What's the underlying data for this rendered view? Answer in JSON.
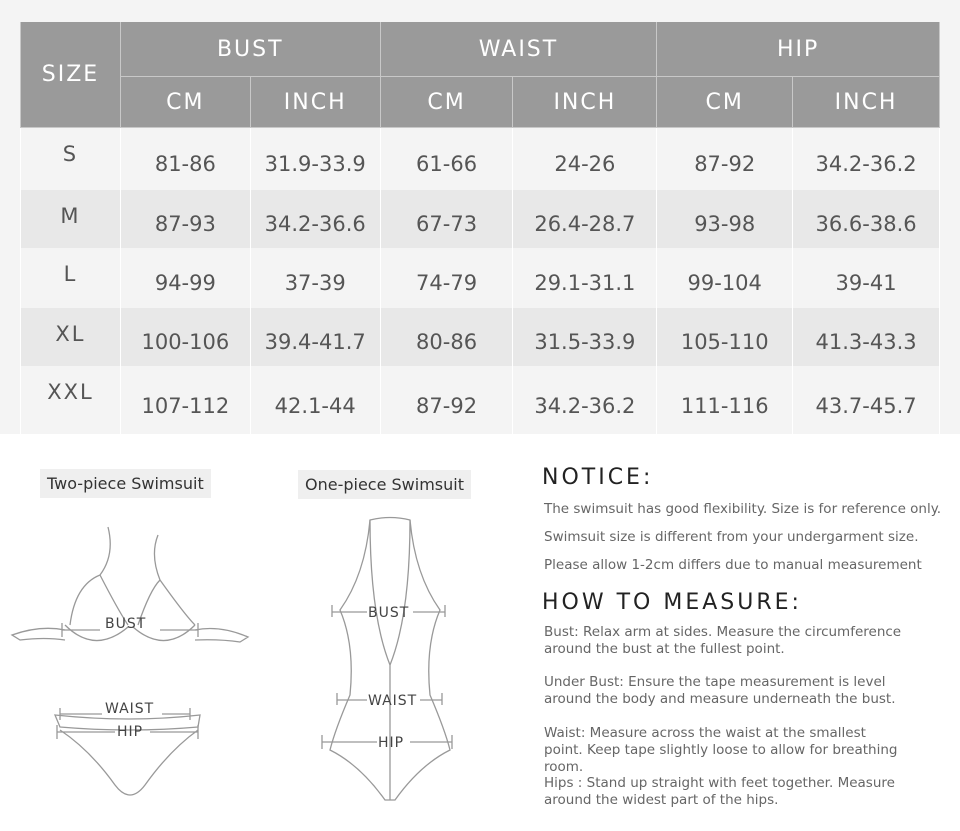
{
  "table": {
    "size_header": "SIZE",
    "groups": [
      "BUST",
      "WAIST",
      "HIP"
    ],
    "units": [
      "CM",
      "INCH",
      "CM",
      "INCH",
      "CM",
      "INCH"
    ],
    "rows": [
      {
        "size": "S",
        "values": [
          "81-86",
          "31.9-33.9",
          "61-66",
          "24-26",
          "87-92",
          "34.2-36.2"
        ]
      },
      {
        "size": "M",
        "values": [
          "87-93",
          "34.2-36.6",
          "67-73",
          "26.4-28.7",
          "93-98",
          "36.6-38.6"
        ]
      },
      {
        "size": "L",
        "values": [
          "94-99",
          "37-39",
          "74-79",
          "29.1-31.1",
          "99-104",
          "39-41"
        ]
      },
      {
        "size": "XL",
        "values": [
          "100-106",
          "39.4-41.7",
          "80-86",
          "31.5-33.9",
          "105-110",
          "41.3-43.3"
        ]
      },
      {
        "size": "XXL",
        "values": [
          "107-112",
          "42.1-44",
          "87-92",
          "34.2-36.2",
          "111-116",
          "43.7-45.7"
        ]
      }
    ]
  },
  "diagrams": {
    "two_piece": {
      "title": "Two-piece Swimsuit",
      "bust": "BUST",
      "waist": "WAIST",
      "hip": "HIP"
    },
    "one_piece": {
      "title": "One-piece Swimsuit",
      "bust": "BUST",
      "waist": "WAIST",
      "hip": "HIP"
    }
  },
  "notice": {
    "title": "NOTICE:",
    "lines": [
      "The swimsuit has good flexibility. Size is for reference only.",
      "Swimsuit size is different from your undergarment size.",
      "Please allow 1-2cm differs due to manual measurement"
    ]
  },
  "measure": {
    "title": "HOW TO MEASURE:",
    "items": [
      "Bust: Relax arm at sides. Measure the circumference around the bust at the fullest point.",
      "Under Bust: Ensure the tape measurement is level around the body and measure underneath the bust.",
      "Waist: Measure across the waist at the smallest point. Keep tape slightly loose to allow for breathing room.",
      "Hips : Stand up straight with feet together. Measure around the widest part of the hips."
    ]
  }
}
